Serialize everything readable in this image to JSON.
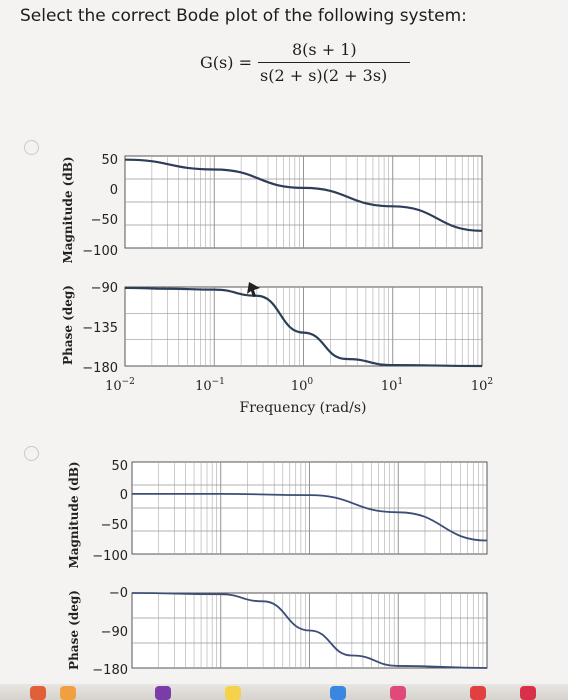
{
  "question": {
    "text": "Select the correct Bode plot of the following system:",
    "formula_lhs": "G(s) =",
    "formula_num": "8(s + 1)",
    "formula_den": "s(2 + s)(2 + 3s)"
  },
  "option_a": {
    "magnitude_ylabel": "Magnitude (dB)",
    "phase_ylabel": "Phase (deg)",
    "magnitude_ticks": [
      "50",
      "0",
      "−50",
      "−100"
    ],
    "phase_ticks": [
      "−90",
      "−135",
      "−180"
    ],
    "x_ticks": [
      {
        "base": "10",
        "exp": "−2"
      },
      {
        "base": "10",
        "exp": "−1"
      },
      {
        "base": "10",
        "exp": "0"
      },
      {
        "base": "10",
        "exp": "1"
      },
      {
        "base": "10",
        "exp": "2"
      }
    ],
    "xlabel": "Frequency (rad/s)"
  },
  "option_b": {
    "magnitude_ylabel": "Magnitude (dB)",
    "phase_ylabel": "Phase (deg)",
    "magnitude_ticks": [
      "50",
      "0",
      "−50",
      "−100"
    ],
    "phase_ticks": [
      "−0",
      "−90",
      "−180"
    ]
  },
  "chart_data": [
    {
      "type": "line",
      "panel": "option-a-magnitude",
      "x_scale": "log",
      "xlim": [
        0.01,
        100
      ],
      "ylim": [
        -100,
        50
      ],
      "series": [
        {
          "x": [
            0.01,
            0.1,
            1,
            10,
            100
          ],
          "values": [
            44,
            28,
            -2,
            -32,
            -72
          ]
        }
      ]
    },
    {
      "type": "line",
      "panel": "option-a-phase",
      "x_scale": "log",
      "xlim": [
        0.01,
        100
      ],
      "ylim": [
        -180,
        -90
      ],
      "series": [
        {
          "x": [
            0.01,
            0.03,
            0.1,
            0.3,
            1,
            3,
            10,
            100
          ],
          "values": [
            -91,
            -92,
            -93,
            -100,
            -142,
            -172,
            -179,
            -180
          ]
        }
      ]
    },
    {
      "type": "line",
      "panel": "option-b-magnitude",
      "x_scale": "log",
      "xlim": [
        0.01,
        100
      ],
      "ylim": [
        -100,
        50
      ],
      "series": [
        {
          "x": [
            0.01,
            0.1,
            1,
            10,
            100
          ],
          "values": [
            -2,
            -2,
            -4,
            -32,
            -78
          ]
        }
      ]
    },
    {
      "type": "line",
      "panel": "option-b-phase",
      "x_scale": "log",
      "xlim": [
        0.01,
        100
      ],
      "ylim": [
        -180,
        0
      ],
      "series": [
        {
          "x": [
            0.01,
            0.1,
            0.3,
            1,
            3,
            10,
            100
          ],
          "values": [
            0,
            -3,
            -20,
            -90,
            -150,
            -175,
            -180
          ]
        }
      ]
    }
  ]
}
